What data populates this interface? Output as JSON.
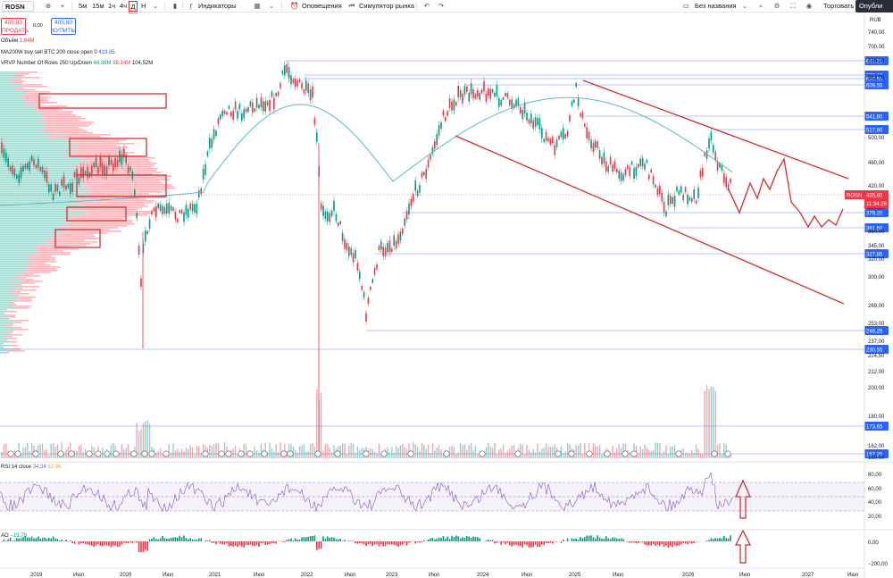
{
  "toolbar": {
    "symbol": "ROSN",
    "timeframes": [
      "5м",
      "15м",
      "1ч",
      "4ч",
      "Д",
      "Н"
    ],
    "active_timeframe": "Д",
    "indicators_label": "Индикаторы",
    "alerts_label": "Оповещения",
    "replay_label": "Симулятор рынка",
    "layout_label": "Без названия",
    "trade_label": "Торговать",
    "publish_label": "Опубли"
  },
  "trade_panel": {
    "sell_price": "405,80",
    "sell_label": "ПРОДАТЬ",
    "spread": "0,00",
    "buy_price": "405,80",
    "buy_label": "КУПИТЬ"
  },
  "legend": {
    "volume_label": "Объём",
    "volume_value": "1,84M",
    "ma_label": "MA200W buy sell BTC 200 close open 0",
    "ma_value": "419,85",
    "vrvp_label": "VRVP Number Of Rows 250 Up/Down",
    "vrvp_up": "46,38M",
    "vrvp_down": "58,14M",
    "vrvp_total": "104,52M"
  },
  "rsi_panel": {
    "label": "RSI 14 close",
    "value1": "34,24",
    "value2": "32,96",
    "ticks": [
      "80,00",
      "60,00",
      "40,00",
      "20,00"
    ]
  },
  "ao_panel": {
    "label": "AO",
    "value": "−15,79",
    "ticks": [
      "0,00",
      "−200,00"
    ]
  },
  "price_axis": {
    "currency": "RUB",
    "ticks": [
      "740,00",
      "700,00",
      "630,00",
      "562,00",
      "500,00",
      "460,00",
      "420,00",
      "390,00",
      "360,00",
      "345,00",
      "320,00",
      "300,00",
      "269,00",
      "253,00",
      "237,00",
      "224,50",
      "212,00",
      "200,00",
      "180,00",
      "162,00",
      "150,00"
    ],
    "level_tags": [
      "663,25",
      "632,15",
      "620,55",
      "609,55",
      "541,80",
      "517,60",
      "379,20",
      "361,50",
      "327,85",
      "246,25",
      "230,55",
      "173,65",
      "157,20"
    ],
    "last_symbol": "ROSN",
    "last_price": "405,80",
    "countdown": "11:34:26"
  },
  "time_axis": {
    "labels": [
      "2019",
      "Июл",
      "2020",
      "Июл",
      "2021",
      "Июл",
      "2022",
      "Июл",
      "2023",
      "Июл",
      "2024",
      "Июл",
      "2025",
      "Июл",
      "2026",
      "Июл",
      "2027",
      "Июл"
    ]
  },
  "colors": {
    "up": "#089981",
    "down": "#f23645",
    "ma": "#5bbac4",
    "levels": "#2962ff",
    "annotation": "#d32f2f",
    "rsi_band": "#7e57c2",
    "last_price_bg": "#f23645"
  }
}
